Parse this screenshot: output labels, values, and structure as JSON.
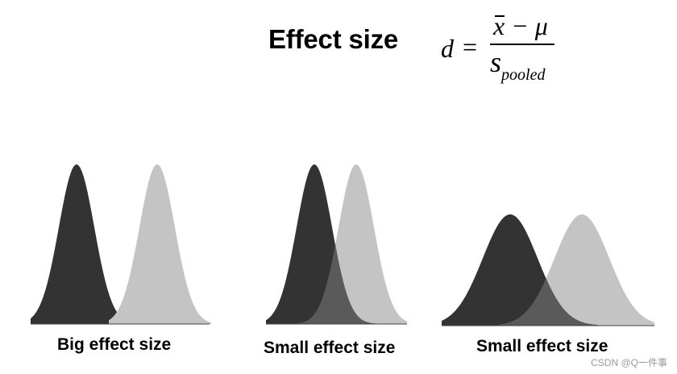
{
  "title": "Effect size",
  "formula": {
    "lhs": "d",
    "equals": "=",
    "numerator_x": "x",
    "numerator_rest": " − μ",
    "denominator_s": "s",
    "denominator_sub": "pooled"
  },
  "panels": [
    {
      "caption": "Big effect size"
    },
    {
      "caption": "Small effect size"
    },
    {
      "caption": "Small effect size"
    }
  ],
  "colors": {
    "dark": "#333333",
    "light": "#c4c4c4",
    "overlap": "#5a5a5a"
  },
  "watermark": "CSDN @Q一件事"
}
